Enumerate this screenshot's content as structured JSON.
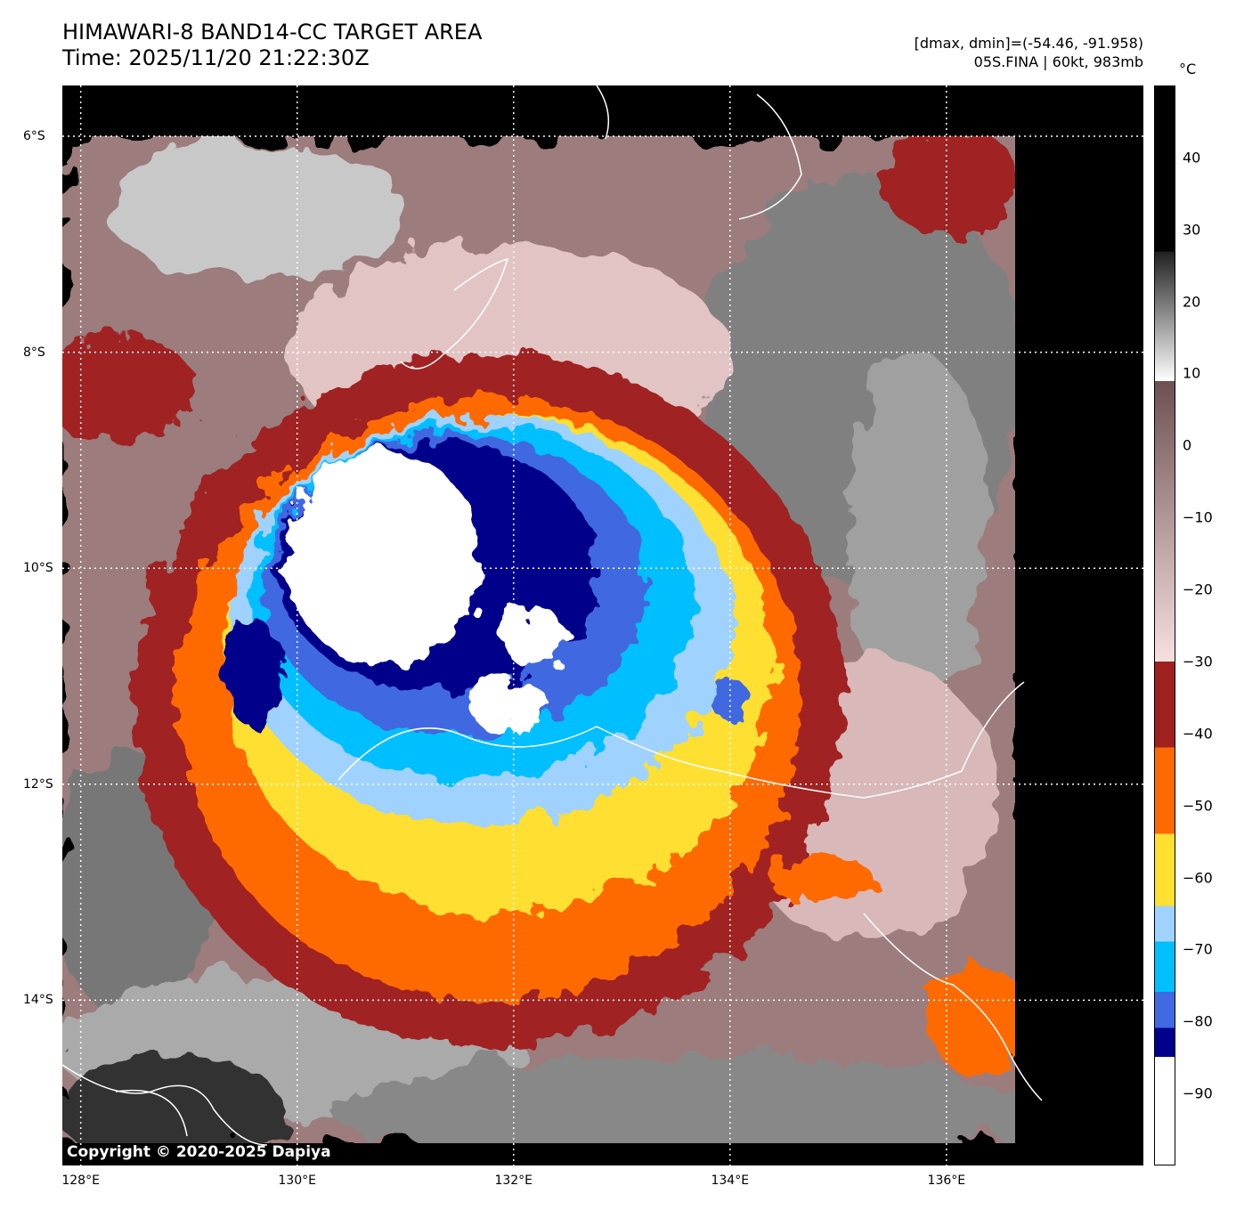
{
  "header": {
    "title": "HIMAWARI-8 BAND14-CC TARGET AREA",
    "time": "Time: 2025/11/20 21:22:30Z",
    "dminmax": "[dmax, dmin]=(-54.46, -91.958)",
    "storm": "05S.FINA | 60kt, 983mb"
  },
  "map": {
    "lon_range": [
      127.83,
      137.82
    ],
    "lat_range": [
      -5.53,
      -15.53
    ],
    "lon_ticks": [
      {
        "value": 128,
        "label": "128°E"
      },
      {
        "value": 130,
        "label": "130°E"
      },
      {
        "value": 132,
        "label": "132°E"
      },
      {
        "value": 134,
        "label": "134°E"
      },
      {
        "value": 136,
        "label": "136°E"
      }
    ],
    "lat_ticks": [
      {
        "value": -6,
        "label": "6°S"
      },
      {
        "value": -8,
        "label": "8°S"
      },
      {
        "value": -10,
        "label": "10°S"
      },
      {
        "value": -12,
        "label": "12°S"
      },
      {
        "value": -14,
        "label": "14°S"
      }
    ],
    "copyright": "Copyright © 2020-2025 Dapiya"
  },
  "colorbar": {
    "unit": "°C",
    "range": [
      -100,
      50
    ],
    "ticks": [
      "40",
      "30",
      "20",
      "10",
      "0",
      "−10",
      "−20",
      "−30",
      "−40",
      "−50",
      "−60",
      "−70",
      "−80",
      "−90"
    ],
    "tick_values": [
      40,
      30,
      20,
      10,
      0,
      -10,
      -20,
      -30,
      -40,
      -50,
      -60,
      -70,
      -80,
      -90
    ],
    "stops": [
      {
        "from": -100,
        "to": -85,
        "color": "#ffffff"
      },
      {
        "from": -85,
        "to": -81,
        "color": "#00008b"
      },
      {
        "from": -81,
        "to": -76,
        "color": "#4169e1"
      },
      {
        "from": -76,
        "to": -69,
        "color": "#00bfff"
      },
      {
        "from": -69,
        "to": -64,
        "color": "#a0d2ff"
      },
      {
        "from": -64,
        "to": -54,
        "color": "#ffe030"
      },
      {
        "from": -54,
        "to": -42,
        "color": "#ff6a00"
      },
      {
        "from": -42,
        "to": -30,
        "color": "#a02020"
      },
      {
        "from": -30,
        "to": 9,
        "gradient": [
          "#f8e0e0",
          "#6e5050"
        ]
      },
      {
        "from": 9,
        "to": 27,
        "gradient": [
          "#ffffff",
          "#202020"
        ]
      },
      {
        "from": 27,
        "to": 50,
        "color": "#000000"
      }
    ]
  }
}
